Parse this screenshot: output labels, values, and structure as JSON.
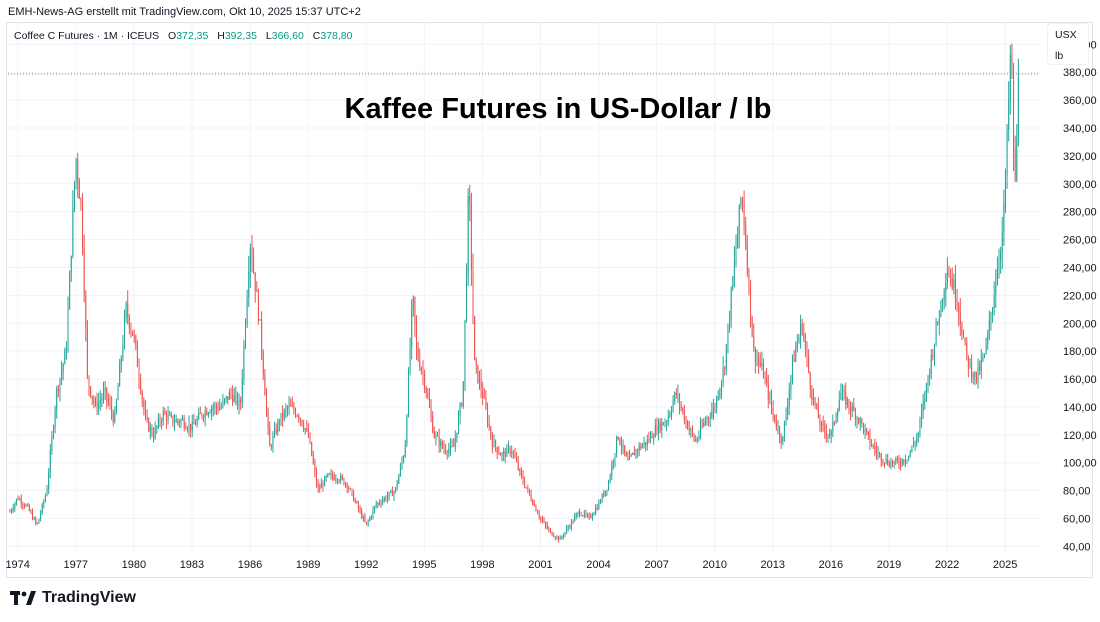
{
  "header": {
    "attribution": "EMH-News-AG erstellt mit TradingView.com, Okt 10, 2025 15:37 UTC+2"
  },
  "legend": {
    "symbol": "Coffee C Futures · 1M · ICEUS",
    "open_label": "O",
    "open_value": "372,35",
    "high_label": "H",
    "high_value": "392,35",
    "low_label": "L",
    "low_value": "366,60",
    "close_label": "C",
    "close_value": "378,80"
  },
  "unit_selector": {
    "currency": "USX",
    "unit": "lb"
  },
  "brand": {
    "name": "TradingView",
    "icon": "tradingview-logo-icon"
  },
  "colors": {
    "up": "#26a69a",
    "down": "#ef5350",
    "grid": "#f0f3fa",
    "text": "#131722"
  },
  "chart_data": {
    "type": "candlestick",
    "title": "Kaffee Futures in US-Dollar / lb",
    "interval": "1M",
    "x_tick_labels": [
      "1974",
      "1977",
      "1980",
      "1983",
      "1986",
      "1989",
      "1992",
      "1995",
      "1998",
      "2001",
      "2004",
      "2007",
      "2010",
      "2013",
      "2016",
      "2019",
      "2022",
      "2025"
    ],
    "y_tick_labels": [
      "40,00",
      "60,00",
      "80,00",
      "100,00",
      "120,00",
      "140,00",
      "160,00",
      "180,00",
      "200,00",
      "220,00",
      "240,00",
      "260,00",
      "280,00",
      "300,00",
      "320,00",
      "340,00",
      "360,00",
      "380,00",
      "400,00"
    ],
    "ylim": [
      36,
      416
    ],
    "xlim": [
      1973.5,
      2026.8
    ],
    "last_price": 378.8,
    "grid": true,
    "series": [
      {
        "x": [
          1973.6,
          1974.0,
          1974.5,
          1975.0,
          1975.5,
          1976.0,
          1976.5,
          1977.0,
          1977.3,
          1977.6,
          1978.0,
          1978.5,
          1979.0,
          1979.6,
          1980.0,
          1980.6,
          1981.0,
          1981.5,
          1982.0,
          1982.5,
          1983.0,
          1983.5,
          1984.0,
          1984.5,
          1985.0,
          1985.5,
          1986.0,
          1986.5,
          1987.0,
          1987.5,
          1988.0,
          1988.5,
          1989.0,
          1989.5,
          1990.0,
          1990.5,
          1991.0,
          1991.5,
          1992.0,
          1992.5,
          1993.0,
          1993.5,
          1994.0,
          1994.4,
          1994.6,
          1995.0,
          1995.5,
          1996.0,
          1996.5,
          1997.0,
          1997.3,
          1997.6,
          1998.0,
          1998.5,
          1999.0,
          1999.5,
          2000.0,
          2000.5,
          2001.0,
          2001.5,
          2002.0,
          2002.5,
          2003.0,
          2003.5,
          2004.0,
          2004.5,
          2005.0,
          2005.5,
          2006.0,
          2006.5,
          2007.0,
          2007.5,
          2008.0,
          2008.5,
          2009.0,
          2009.5,
          2010.0,
          2010.5,
          2011.0,
          2011.4,
          2011.7,
          2012.0,
          2012.5,
          2013.0,
          2013.5,
          2014.0,
          2014.5,
          2015.0,
          2015.5,
          2016.0,
          2016.5,
          2017.0,
          2017.5,
          2018.0,
          2018.5,
          2019.0,
          2019.5,
          2020.0,
          2020.5,
          2021.0,
          2021.5,
          2022.0,
          2022.5,
          2023.0,
          2023.5,
          2024.0,
          2024.5,
          2024.9,
          2025.1,
          2025.3,
          2025.5,
          2025.7
        ],
        "y": [
          65,
          75,
          68,
          55,
          80,
          150,
          180,
          320,
          280,
          160,
          140,
          150,
          130,
          210,
          190,
          130,
          120,
          135,
          130,
          130,
          125,
          135,
          140,
          140,
          150,
          140,
          260,
          200,
          110,
          130,
          140,
          135,
          120,
          80,
          90,
          90,
          85,
          70,
          55,
          70,
          75,
          80,
          110,
          220,
          180,
          160,
          120,
          110,
          110,
          150,
          300,
          170,
          150,
          115,
          105,
          110,
          90,
          75,
          60,
          50,
          45,
          55,
          65,
          60,
          70,
          85,
          120,
          100,
          110,
          115,
          125,
          130,
          150,
          130,
          115,
          130,
          140,
          170,
          240,
          295,
          240,
          180,
          165,
          135,
          115,
          170,
          200,
          150,
          125,
          120,
          150,
          140,
          130,
          115,
          105,
          100,
          100,
          105,
          120,
          160,
          200,
          240,
          220,
          175,
          160,
          180,
          230,
          270,
          330,
          400,
          290,
          378.8
        ]
      }
    ]
  }
}
